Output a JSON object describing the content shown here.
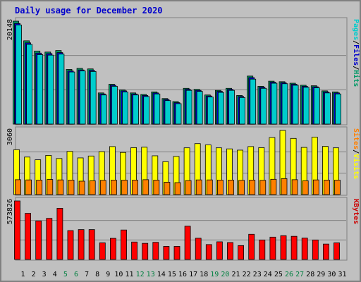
{
  "title": "Daily usage for December 2020",
  "chart_data": [
    {
      "type": "bar",
      "panel": "top",
      "ymax_label": "20148",
      "ylim": [
        0,
        20148
      ],
      "right_label": [
        "Pages",
        "/",
        "Files",
        "/",
        "Hits"
      ],
      "right_label_colors": [
        "#00cccc",
        "#000000",
        "#0000cc",
        "#000000",
        "#009966"
      ],
      "categories": [
        "1",
        "2",
        "3",
        "4",
        "5",
        "6",
        "7",
        "8",
        "9",
        "10",
        "11",
        "12",
        "13",
        "14",
        "15",
        "16",
        "17",
        "18",
        "19",
        "20",
        "21",
        "22",
        "23",
        "24",
        "25",
        "26",
        "27",
        "28",
        "29",
        "30",
        "31"
      ],
      "series": [
        {
          "name": "Hits",
          "color": "#009966",
          "values": [
            20148,
            16300,
            14300,
            14100,
            14400,
            10700,
            10900,
            10800,
            6100,
            7800,
            6700,
            6100,
            5800,
            6300,
            5000,
            4400,
            7000,
            6800,
            5700,
            6600,
            7000,
            5600,
            9400,
            7400,
            8400,
            8300,
            8000,
            7600,
            7500,
            6500,
            6300
          ]
        },
        {
          "name": "Files",
          "color": "#0000cc",
          "values": [
            19700,
            15900,
            13900,
            13800,
            14000,
            10400,
            10600,
            10500,
            5900,
            7600,
            6500,
            5900,
            5600,
            6100,
            4800,
            4200,
            6800,
            6600,
            5500,
            6400,
            6800,
            5400,
            9100,
            7200,
            8200,
            8100,
            7800,
            7400,
            7300,
            6300,
            6100
          ]
        },
        {
          "name": "Pages",
          "color": "#00cccc",
          "values": [
            19400,
            15600,
            13600,
            13500,
            13700,
            10200,
            10400,
            10300,
            5700,
            7400,
            6300,
            5700,
            5400,
            5900,
            4600,
            4000,
            6600,
            6400,
            5300,
            6200,
            6600,
            5200,
            8800,
            7000,
            8000,
            7900,
            7600,
            7200,
            7100,
            6100,
            5900
          ]
        }
      ]
    },
    {
      "type": "bar",
      "panel": "middle",
      "ymax_label": "3060",
      "ylim": [
        0,
        3060
      ],
      "right_label": [
        "Sites",
        "/",
        "Visits"
      ],
      "right_label_colors": [
        "#ff8000",
        "#000000",
        "#ffff00"
      ],
      "categories": [
        "1",
        "2",
        "3",
        "4",
        "5",
        "6",
        "7",
        "8",
        "9",
        "10",
        "11",
        "12",
        "13",
        "14",
        "15",
        "16",
        "17",
        "18",
        "19",
        "20",
        "21",
        "22",
        "23",
        "24",
        "25",
        "26",
        "27",
        "28",
        "29",
        "30",
        "31"
      ],
      "series": [
        {
          "name": "Visits",
          "color": "#ffff00",
          "values": [
            2140,
            1790,
            1660,
            1870,
            1720,
            2060,
            1750,
            1840,
            2050,
            2290,
            2010,
            2240,
            2260,
            1850,
            1570,
            1820,
            2230,
            2430,
            2370,
            2230,
            2180,
            2120,
            2290,
            2240,
            2720,
            3060,
            2680,
            2250,
            2740,
            2300,
            2230
          ]
        },
        {
          "name": "Sites",
          "color": "#ff8000",
          "values": [
            710,
            700,
            690,
            720,
            700,
            690,
            640,
            660,
            680,
            690,
            690,
            690,
            710,
            690,
            590,
            570,
            670,
            700,
            700,
            690,
            690,
            680,
            690,
            680,
            730,
            760,
            710,
            660,
            700,
            690,
            690
          ]
        }
      ]
    },
    {
      "type": "bar",
      "panel": "bottom",
      "ymax_label": "573826",
      "ylim": [
        0,
        573826
      ],
      "right_label": [
        "KBytes"
      ],
      "right_label_colors": [
        "#cc0000"
      ],
      "categories": [
        "1",
        "2",
        "3",
        "4",
        "5",
        "6",
        "7",
        "8",
        "9",
        "10",
        "11",
        "12",
        "13",
        "14",
        "15",
        "16",
        "17",
        "18",
        "19",
        "20",
        "21",
        "22",
        "23",
        "24",
        "25",
        "26",
        "27",
        "28",
        "29",
        "30",
        "31"
      ],
      "series": [
        {
          "name": "KBytes",
          "color": "#ff0000",
          "values": [
            573826,
            452000,
            377000,
            403000,
            502000,
            283000,
            293000,
            293000,
            163000,
            207000,
            289000,
            171000,
            158000,
            168000,
            128000,
            128000,
            326000,
            208000,
            146000,
            173000,
            166000,
            136000,
            247000,
            191000,
            219000,
            233000,
            227000,
            209000,
            191000,
            151000,
            163000
          ]
        }
      ]
    }
  ],
  "x_labels": [
    "1",
    "2",
    "3",
    "4",
    "5",
    "6",
    "7",
    "8",
    "9",
    "10",
    "11",
    "12",
    "13",
    "14",
    "15",
    "16",
    "17",
    "18",
    "19",
    "20",
    "21",
    "22",
    "23",
    "24",
    "25",
    "26",
    "27",
    "28",
    "29",
    "30",
    "31"
  ],
  "weekend_days": [
    "5",
    "6",
    "12",
    "13",
    "19",
    "20",
    "26",
    "27"
  ],
  "colors": {
    "background": "#c0c0c0",
    "panel_border": "#808080",
    "grid": "#808080",
    "title": "#0000cc",
    "weekday_label": "#000000",
    "weekend_label": "#008040",
    "bar_outline": "#000000"
  }
}
